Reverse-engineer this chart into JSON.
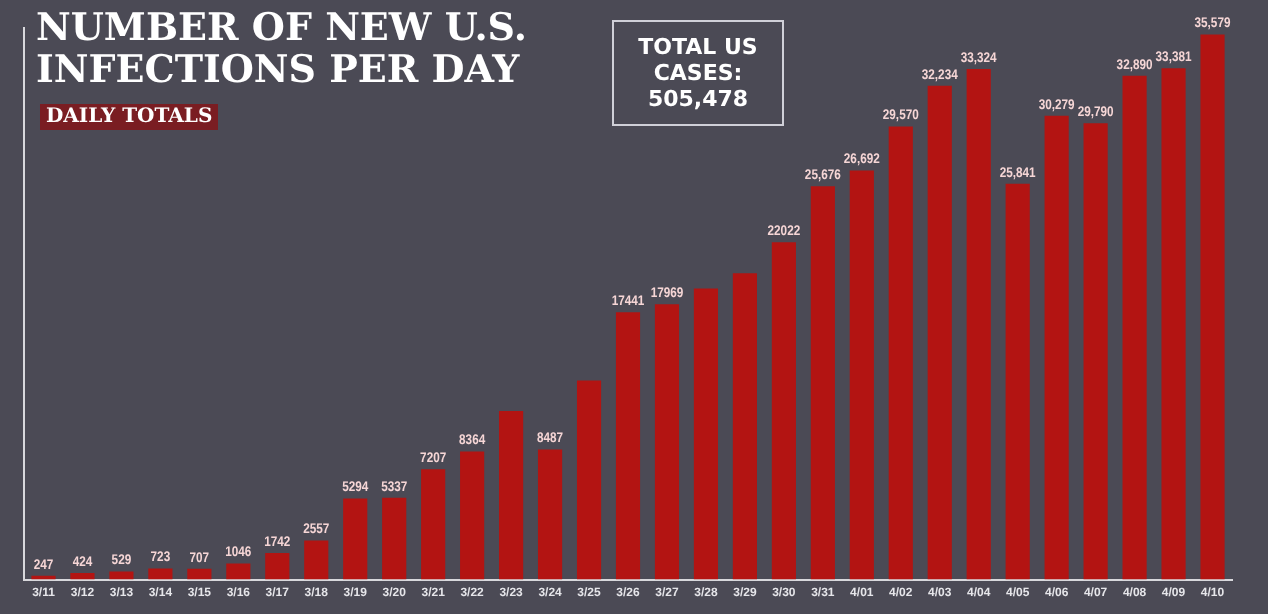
{
  "chart_data": {
    "type": "bar",
    "title": "NUMBER OF NEW U.S. INFECTIONS PER DAY",
    "subtitle": "DAILY TOTALS",
    "annotations": [
      "TOTAL US CASES: 505,478"
    ],
    "categories": [
      "3/11",
      "3/12",
      "3/13",
      "3/14",
      "3/15",
      "3/16",
      "3/17",
      "3/18",
      "3/19",
      "3/20",
      "3/21",
      "3/22",
      "3/23",
      "3/24",
      "3/25",
      "3/26",
      "3/27",
      "3/28",
      "3/29",
      "3/30",
      "3/31",
      "4/01",
      "4/02",
      "4/03",
      "4/04",
      "4/05",
      "4/06",
      "4/07",
      "4/08",
      "4/09",
      "4/10"
    ],
    "values": [
      247,
      424,
      529,
      723,
      707,
      1046,
      1742,
      2557,
      5294,
      5337,
      7207,
      8364,
      11000,
      8487,
      13000,
      17441,
      17969,
      19000,
      20000,
      22022,
      25676,
      26692,
      29570,
      32234,
      33324,
      25841,
      30279,
      29790,
      32890,
      33381,
      35579
    ],
    "value_labels": [
      "247",
      "424",
      "529",
      "723",
      "707",
      "1046",
      "1742",
      "2557",
      "5294",
      "5337",
      "7207",
      "8364",
      null,
      "8487",
      null,
      "17441",
      "17969",
      null,
      null,
      "22022",
      "25,676",
      "26,692",
      "29,570",
      "32,234",
      "33,324",
      "25,841",
      "30,279",
      "29,790",
      "32,890",
      "33,381",
      "35,579"
    ],
    "color": "#b31412",
    "ylim": [
      0,
      36000
    ],
    "tick_labels": "x",
    "grid": false,
    "legend": false
  }
}
